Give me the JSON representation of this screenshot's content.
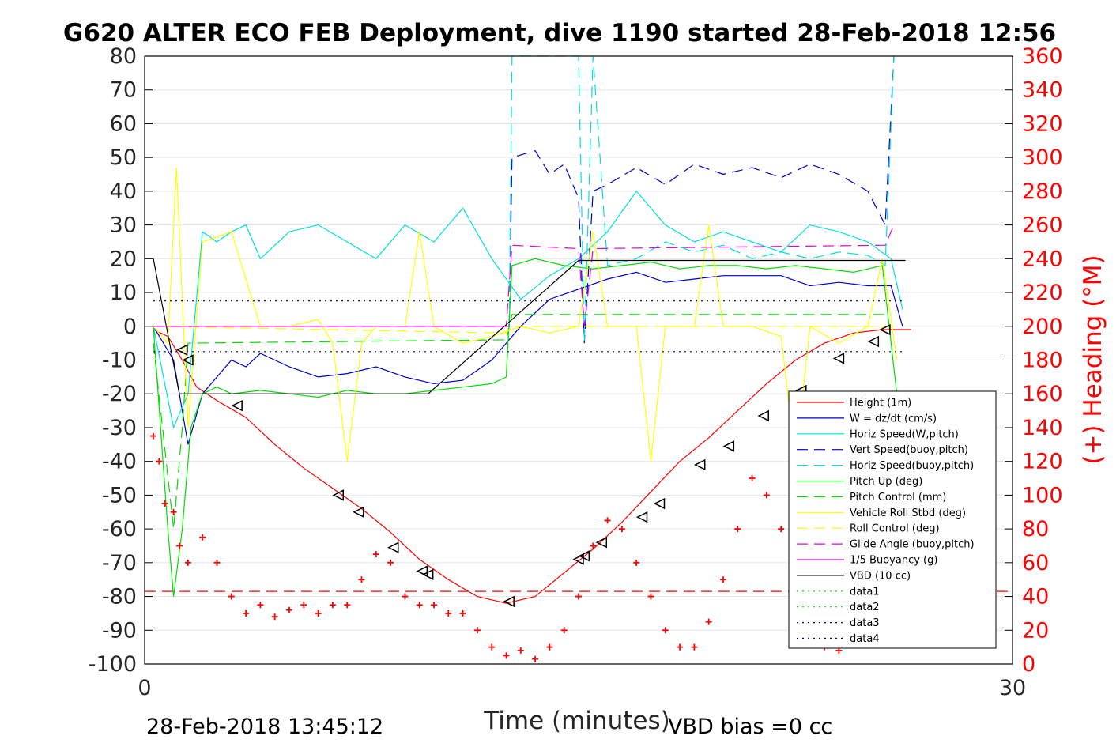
{
  "chart_data": {
    "type": "line",
    "title": "G620 ALTER ECO FEB Deployment, dive 1190 started 28-Feb-2018 12:56",
    "xlabel": "Time (minutes)",
    "ylabel_right": "(+) Heading (°M)",
    "xlim": [
      0,
      30
    ],
    "ylim": [
      -100,
      80
    ],
    "ylim_right": [
      0,
      360
    ],
    "x_ticks": [
      "0",
      "30"
    ],
    "y_ticks": [
      "80",
      "70",
      "60",
      "50",
      "40",
      "30",
      "20",
      "10",
      "0",
      "-10",
      "-20",
      "-30",
      "-40",
      "-50",
      "-60",
      "-70",
      "-80",
      "-90",
      "-100"
    ],
    "y_right_ticks": [
      "360",
      "340",
      "320",
      "300",
      "280",
      "260",
      "240",
      "220",
      "200",
      "180",
      "160",
      "140",
      "120",
      "100",
      "80",
      "60",
      "40",
      "20",
      "0"
    ],
    "grid": true,
    "legend_position": "lower-right",
    "footer_left": "28-Feb-2018 13:45:12",
    "footer_right": "VBD bias =0 cc",
    "colors": {
      "red": "#ff0000",
      "blue": "#0000cc",
      "cyan": "#00e0e0",
      "green": "#00dd00",
      "yellow": "#ffff00",
      "magenta": "#e000e0",
      "black": "#000000"
    },
    "series": [
      {
        "name": "Height (1m)",
        "color": "#ff0000",
        "style": "solid",
        "x": [
          0.3,
          0.8,
          1.3,
          1.8,
          2.5,
          3.5,
          4.5,
          5.5,
          6.5,
          7.5,
          8.5,
          9.5,
          10.5,
          11.5,
          12.5,
          13.5,
          14.5,
          15.5,
          16.5,
          17.5,
          18.5,
          19.5,
          20.5,
          21.5,
          22.5,
          23.5,
          24.5,
          25.5,
          26.5
        ],
        "y": [
          -1,
          -3,
          -10,
          -18,
          -22,
          -27,
          -35,
          -42,
          -48,
          -54,
          -61,
          -69,
          -75,
          -80,
          -82,
          -80,
          -73,
          -66,
          -58,
          -49,
          -40,
          -33,
          -25,
          -17,
          -10,
          -5,
          -2,
          -1,
          -1
        ]
      },
      {
        "name": "W = dz/dt (cm/s)",
        "color": "#0000cc",
        "style": "solid",
        "x": [
          0.3,
          1.0,
          1.5,
          2.0,
          2.5,
          3.0,
          3.5,
          4.0,
          4.5,
          5.0,
          6.0,
          7.0,
          8.0,
          9.0,
          10.0,
          11.0,
          12.0,
          12.5,
          13.0,
          14.0,
          15.0,
          16.0,
          17.0,
          18.0,
          19.0,
          20.0,
          21.0,
          22.0,
          23.0,
          24.0,
          25.0,
          25.8,
          26.2
        ],
        "y": [
          0,
          -10,
          -35,
          -20,
          -15,
          -10,
          -12,
          -8,
          -10,
          -12,
          -15,
          -14,
          -12,
          -15,
          -17,
          -16,
          -10,
          -5,
          0,
          8,
          11,
          14,
          16,
          13,
          14,
          15,
          15,
          15,
          12,
          13,
          12,
          12,
          0
        ]
      },
      {
        "name": "Horiz Speed(W,pitch)",
        "color": "#00e0e0",
        "style": "solid",
        "x": [
          0.3,
          1.0,
          1.5,
          2.0,
          2.5,
          3.0,
          3.5,
          4.0,
          5.0,
          6.0,
          7.0,
          8.0,
          9.0,
          10.0,
          11.0,
          12.0,
          13.0,
          14.0,
          15.0,
          16.0,
          17.0,
          18.0,
          19.0,
          20.0,
          21.0,
          22.0,
          23.0,
          24.0,
          25.0,
          25.8,
          26.2
        ],
        "y": [
          0,
          -30,
          -20,
          28,
          25,
          28,
          30,
          20,
          28,
          30,
          25,
          20,
          30,
          25,
          35,
          20,
          8,
          15,
          20,
          28,
          40,
          30,
          25,
          28,
          25,
          22,
          30,
          28,
          25,
          20,
          5
        ]
      },
      {
        "name": "Vert Speed(buoy,pitch)",
        "color": "#0000cc",
        "style": "dash",
        "x": [
          12.6,
          12.7,
          13.5,
          14.0,
          14.5,
          15.0,
          15.2,
          15.5,
          16.0,
          17.0,
          18.0,
          19.0,
          20.0,
          21.0,
          22.0,
          23.0,
          24.0,
          25.0,
          25.6,
          25.9
        ],
        "y": [
          0,
          50,
          52,
          45,
          48,
          38,
          -5,
          40,
          42,
          47,
          42,
          48,
          45,
          47,
          44,
          48,
          45,
          40,
          30,
          80
        ]
      },
      {
        "name": "Horiz Speed(buoy,pitch)",
        "color": "#00e0e0",
        "style": "dash",
        "x": [
          12.6,
          12.7,
          13.5,
          14.5,
          15.0,
          15.2,
          15.5,
          16.0,
          17.0,
          18.0,
          19.0,
          20.0,
          21.0,
          22.0,
          23.0,
          24.0,
          25.0,
          25.6,
          25.9
        ],
        "y": [
          0,
          80,
          80,
          80,
          80,
          -5,
          80,
          18,
          20,
          25,
          22,
          24,
          20,
          22,
          20,
          22,
          21,
          18,
          80
        ]
      },
      {
        "name": "Pitch Up (deg)",
        "color": "#00dd00",
        "style": "solid",
        "x": [
          0.3,
          0.8,
          1.0,
          1.3,
          1.6,
          2.0,
          2.5,
          3.0,
          4.0,
          5.0,
          6.0,
          7.0,
          8.0,
          9.0,
          10.0,
          11.0,
          12.0,
          12.5,
          12.7,
          13.5,
          14.5,
          15.5,
          16.5,
          17.5,
          18.5,
          19.5,
          20.5,
          21.5,
          22.5,
          23.5,
          24.5,
          25.5,
          26.0
        ],
        "y": [
          0,
          -60,
          -80,
          -60,
          -30,
          -20,
          -18,
          -20,
          -19,
          -20,
          -21,
          -19,
          -20,
          -20,
          -19,
          -18,
          -17,
          -15,
          18,
          20,
          18,
          17,
          18,
          19,
          17,
          18,
          18,
          17,
          18,
          17,
          16,
          18,
          -20
        ]
      },
      {
        "name": "Pitch Control (mm)",
        "color": "#00dd00",
        "style": "dash",
        "x": [
          0.3,
          1.0,
          1.3,
          1.5,
          12.5,
          12.7,
          25.8
        ],
        "y": [
          -5,
          -60,
          -30,
          -5,
          -4,
          3.5,
          3.5
        ]
      },
      {
        "name": "Vehicle Roll Stbd (deg)",
        "color": "#ffff00",
        "style": "solid",
        "x": [
          0.3,
          0.8,
          1.1,
          1.5,
          2.0,
          3.0,
          4.0,
          5.0,
          6.0,
          6.5,
          7.0,
          7.5,
          8.0,
          9.0,
          9.5,
          10.0,
          11.0,
          12.0,
          13.0,
          14.0,
          15.0,
          15.5,
          16.0,
          17.0,
          17.5,
          18.0,
          19.0,
          19.5,
          20.0,
          21.0,
          22.0,
          22.5,
          23.0,
          24.0,
          25.0,
          25.5,
          26.0
        ],
        "y": [
          0,
          -5,
          47,
          -30,
          25,
          28,
          0,
          0,
          2,
          -5,
          -40,
          -5,
          0,
          0,
          28,
          0,
          -5,
          -3,
          0,
          -2,
          0,
          28,
          0,
          0,
          -40,
          0,
          0,
          30,
          0,
          0,
          -3,
          -40,
          0,
          -5,
          0,
          20,
          -10
        ]
      },
      {
        "name": "Roll Control (deg)",
        "color": "#ffff00",
        "style": "dash",
        "x": [
          0.3,
          12.5,
          12.7,
          25.8
        ],
        "y": [
          0,
          -2,
          0,
          0
        ]
      },
      {
        "name": "Glide Angle (buoy,pitch)",
        "color": "#e000e0",
        "style": "dash",
        "x": [
          0.3,
          12.5,
          12.7,
          15.0,
          15.2,
          15.5,
          25.6,
          25.9
        ],
        "y": [
          0,
          0,
          24,
          23,
          0,
          23,
          24,
          30
        ]
      },
      {
        "name": "1/5 Buoyancy (g)",
        "color": "#e000e0",
        "style": "solid",
        "x": [
          0.3,
          12.6
        ],
        "y": [
          0,
          0
        ]
      },
      {
        "name": "VBD (10 cc)",
        "color": "#000000",
        "style": "solid",
        "x": [
          0.3,
          1.2,
          9.8,
          15.0,
          26.3
        ],
        "y": [
          20,
          -20,
          -20,
          19.5,
          19.5
        ]
      },
      {
        "name": "data1",
        "color": "#00dd00",
        "style": "dot",
        "x": [],
        "y": []
      },
      {
        "name": "data2",
        "color": "#00dd00",
        "style": "dot",
        "x": [],
        "y": []
      },
      {
        "name": "data3",
        "color": "#000080",
        "style": "dot",
        "x": [
          0.3,
          26.3
        ],
        "y": [
          7.5,
          7.5
        ]
      },
      {
        "name": "data4",
        "color": "#000080",
        "style": "dot",
        "x": [
          0.3,
          26.3
        ],
        "y": [
          -7.5,
          -7.5
        ]
      }
    ],
    "red_dashed_line": {
      "y": -78.5,
      "color": "#ff0000"
    },
    "heading_points": {
      "axis": "right",
      "color": "#ff0000",
      "x": [
        0.3,
        0.5,
        0.7,
        1.0,
        1.2,
        1.5,
        2.0,
        2.5,
        3.0,
        3.5,
        4.0,
        4.5,
        5.0,
        5.5,
        6.0,
        6.5,
        7.0,
        7.5,
        8.0,
        8.5,
        9.0,
        9.5,
        10.0,
        10.5,
        11.0,
        11.5,
        12.0,
        12.5,
        13.0,
        13.5,
        14.0,
        14.5,
        15.0,
        15.5,
        16.0,
        16.5,
        17.0,
        17.5,
        18.0,
        18.5,
        19.0,
        19.5,
        20.0,
        20.5,
        21.0,
        21.5,
        22.0,
        22.5,
        23.0,
        23.5,
        24.0
      ],
      "y": [
        135,
        120,
        95,
        90,
        70,
        60,
        75,
        60,
        40,
        30,
        35,
        28,
        32,
        35,
        30,
        35,
        35,
        50,
        65,
        60,
        40,
        35,
        35,
        30,
        30,
        20,
        10,
        5,
        8,
        3,
        10,
        20,
        40,
        70,
        85,
        80,
        60,
        40,
        20,
        10,
        10,
        25,
        50,
        80,
        110,
        100,
        80,
        50,
        20,
        10,
        8
      ]
    },
    "triangle_markers": {
      "x": [
        1.3,
        1.5,
        3.2,
        6.7,
        7.4,
        8.6,
        9.6,
        9.8,
        12.6,
        15.0,
        15.2,
        15.8,
        17.2,
        17.8,
        19.2,
        20.2,
        21.4,
        22.7,
        24.0,
        25.2,
        25.6
      ],
      "y": [
        -7,
        -10,
        -23.5,
        -50,
        -55,
        -65.5,
        -72.5,
        -73.5,
        -81.5,
        -69,
        -68,
        -64,
        -56.5,
        -52.5,
        -41,
        -35.5,
        -26.5,
        -19,
        -9.5,
        -4.5,
        -1
      ]
    }
  }
}
